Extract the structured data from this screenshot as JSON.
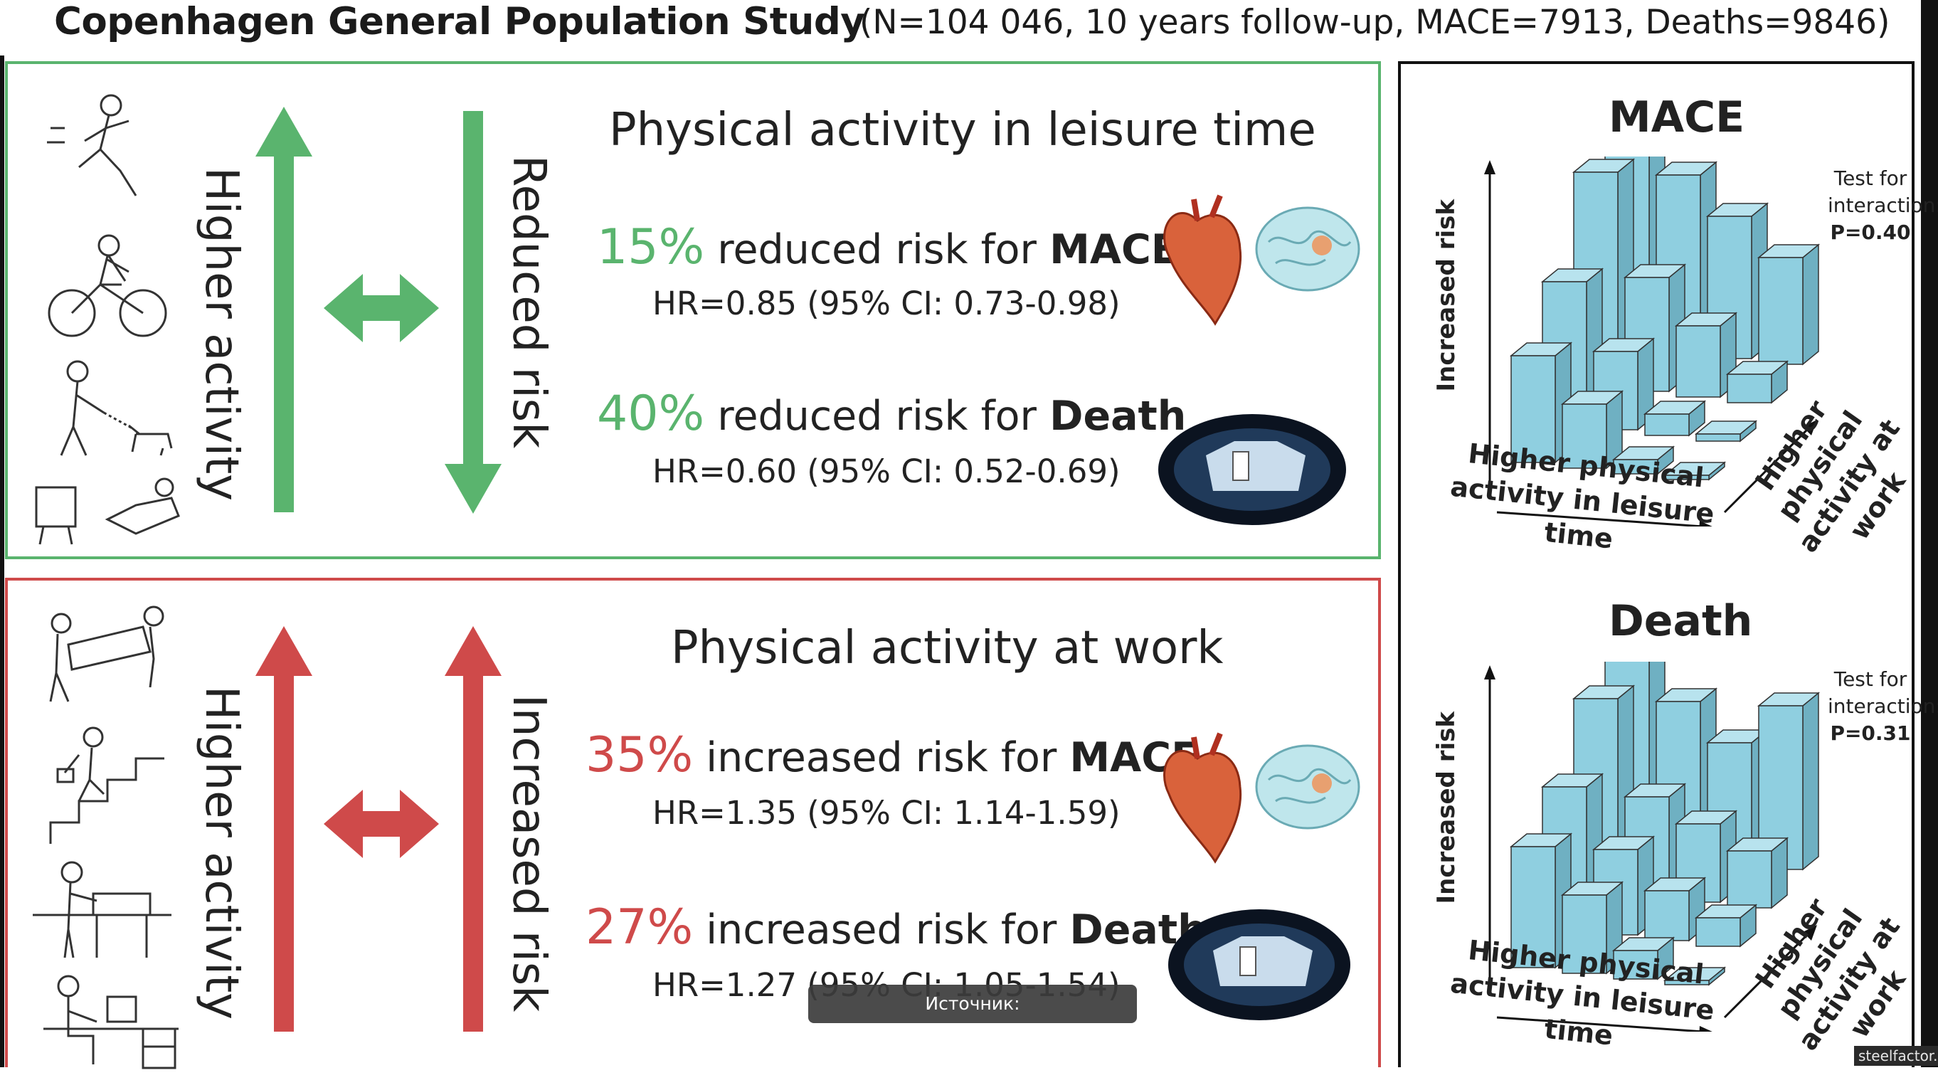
{
  "header": {
    "title": "Copenhagen General Population Study",
    "subtitle": "(N=104 046, 10 years follow-up, MACE=7913, Deaths=9846)"
  },
  "colors": {
    "green": "#5ab46e",
    "red": "#cf4a4a",
    "bar": "#8fcfe0"
  },
  "leisure": {
    "heading": "Physical activity in leisure time",
    "left_arrow_label": "Higher activity",
    "right_arrow_label": "Reduced risk",
    "mace": {
      "pct": "15%",
      "text": " reduced risk for ",
      "bold": "MACE",
      "hr": "HR=0.85 (95% CI: 0.73-0.98)"
    },
    "death": {
      "pct": "40%",
      "text": " reduced risk for ",
      "bold": "Death",
      "hr": "HR=0.60 (95% CI: 0.52-0.69)"
    },
    "icons": [
      "running-person-icon",
      "cyclist-icon",
      "dog-walker-icon",
      "tv-relaxing-icon"
    ]
  },
  "work": {
    "heading": "Physical activity at work",
    "left_arrow_label": "Higher activity",
    "right_arrow_label": "Increased risk",
    "mace": {
      "pct": "35%",
      "text": " increased risk for ",
      "bold": "MACE",
      "hr": "HR=1.35 (95% CI: 1.14-1.59)"
    },
    "death": {
      "pct": "27%",
      "text": " increased risk for ",
      "bold": "Death",
      "hr": "HR=1.27 (95% CI: 1.05-1.54)"
    },
    "icons": [
      "furniture-movers-icon",
      "stair-climber-icon",
      "standing-worker-icon",
      "desk-worker-icon"
    ]
  },
  "charts": [
    {
      "title": "MACE",
      "interaction_label": "Test for interaction:",
      "interaction_p": "P=0.40",
      "y_label": "Increased risk",
      "x_label_1": "Higher physical",
      "x_label_2": "activity in leisure time",
      "z_label_1": "Higher physical",
      "z_label_2": "activity at work"
    },
    {
      "title": "Death",
      "interaction_label": "Test for interaction:",
      "interaction_p": "P=0.31",
      "y_label": "Increased risk",
      "x_label_1": "Higher physical",
      "x_label_2": "activity in leisure time",
      "z_label_1": "Higher physical",
      "z_label_2": "activity at work"
    }
  ],
  "source_tooltip": "Источник: https://academic.oup.com",
  "watermark": "steelfactor.ru"
}
